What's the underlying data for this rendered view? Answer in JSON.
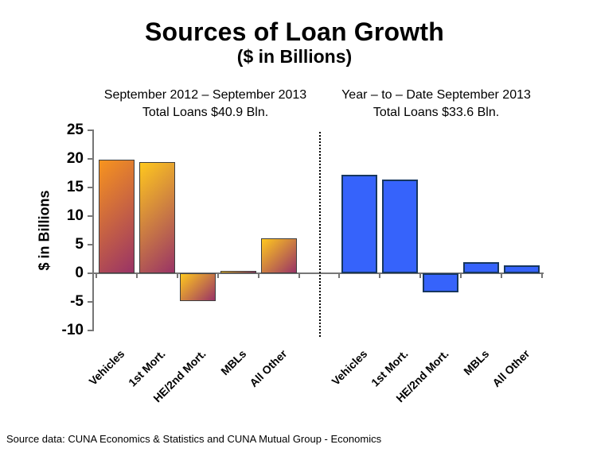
{
  "chart_data": {
    "type": "bar",
    "title": "Sources of Loan Growth",
    "subtitle": "($ in Billions)",
    "ylabel": "$ in Billions",
    "ylim": [
      -10,
      25
    ],
    "yticks": [
      25,
      20,
      15,
      10,
      5,
      0,
      -5,
      -10
    ],
    "grid": false,
    "legend_position": "none",
    "categories": [
      "Vehicles",
      "1st Mort.",
      "HE/2nd Mort.",
      "MBLs",
      "All Other"
    ],
    "panels": [
      {
        "id": "sep2012-sep2013",
        "header_line1": "September 2012 – September 2013",
        "header_line2": "Total Loans $40.9 Bln.",
        "bar_style": "gradient",
        "values": [
          19.8,
          19.4,
          -4.8,
          0.4,
          6.1
        ]
      },
      {
        "id": "ytd-sep2013",
        "header_line1": "Year – to – Date September 2013",
        "header_line2": "Total Loans $33.6 Bln.",
        "bar_style": "blue",
        "values": [
          17.2,
          16.4,
          -3.4,
          2.0,
          1.4
        ]
      }
    ],
    "source_note": "Source data: CUNA Economics & Statistics and CUNA Mutual Group - Economics",
    "colors": {
      "orange_gradient_start": "#F7941E",
      "gold_gradient_start": "#FFC81E",
      "gradient_end": "#993366",
      "gradient_border": "#3F3F3F",
      "blue_fill": "#3663FB",
      "blue_border": "#17375E",
      "axis": "#767676",
      "divider": "#000000",
      "text": "#000000"
    }
  }
}
